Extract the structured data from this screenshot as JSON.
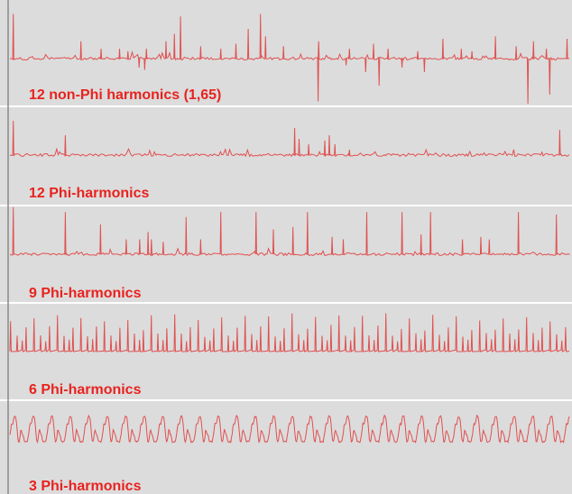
{
  "colors": {
    "background": "#dcdcdc",
    "separator": "#ffffff",
    "left_border": "#8a8a8a",
    "trace": "#e05050",
    "label": "#e8231f"
  },
  "chart_data": [
    {
      "type": "line",
      "series": [
        {
          "name": "12 non-Phi harmonics (1,65)"
        }
      ],
      "spikes_up": [
        [
          0.5,
          0.9
        ],
        [
          12.6,
          0.35
        ],
        [
          16.2,
          0.2
        ],
        [
          19.5,
          0.2
        ],
        [
          21.0,
          0.15
        ],
        [
          24.3,
          0.2
        ],
        [
          27.8,
          0.35
        ],
        [
          29.3,
          0.5
        ],
        [
          30.4,
          0.85
        ],
        [
          34.0,
          0.25
        ],
        [
          37.6,
          0.2
        ],
        [
          40.3,
          0.3
        ],
        [
          42.5,
          0.6
        ],
        [
          44.7,
          0.9
        ],
        [
          45.6,
          0.45
        ],
        [
          48.8,
          0.25
        ],
        [
          55.1,
          0.35
        ],
        [
          60.6,
          0.2
        ],
        [
          64.9,
          0.3
        ],
        [
          67.5,
          0.2
        ],
        [
          72.8,
          0.15
        ],
        [
          77.3,
          0.4
        ],
        [
          80.6,
          0.2
        ],
        [
          82.5,
          0.15
        ],
        [
          86.7,
          0.45
        ],
        [
          90.4,
          0.25
        ],
        [
          93.5,
          0.35
        ],
        [
          95.8,
          0.2
        ],
        [
          99.5,
          0.4
        ]
      ],
      "spikes_down": [
        [
          23.0,
          0.2
        ],
        [
          24.0,
          0.25
        ],
        [
          55.0,
          0.95
        ],
        [
          60.0,
          0.15
        ],
        [
          63.5,
          0.3
        ],
        [
          65.9,
          0.6
        ],
        [
          70.0,
          0.2
        ],
        [
          74.0,
          0.3
        ],
        [
          92.5,
          1.0
        ],
        [
          96.4,
          0.8
        ]
      ]
    },
    {
      "type": "line",
      "series": [
        {
          "name": "12 Phi-harmonics"
        }
      ],
      "spikes_up": [
        [
          0.5,
          0.95
        ],
        [
          9.8,
          0.55
        ],
        [
          50.8,
          0.75
        ],
        [
          51.6,
          0.45
        ],
        [
          53.3,
          0.3
        ],
        [
          56.2,
          0.4
        ],
        [
          57.0,
          0.55
        ],
        [
          58.0,
          0.3
        ],
        [
          60.6,
          0.15
        ],
        [
          98.2,
          0.7
        ]
      ],
      "spikes_down": []
    },
    {
      "type": "line",
      "series": [
        {
          "name": "9 Phi-harmonics"
        }
      ],
      "spikes_up": [
        [
          0.5,
          0.95
        ],
        [
          9.8,
          0.85
        ],
        [
          16.1,
          0.6
        ],
        [
          20.7,
          0.3
        ],
        [
          23.1,
          0.3
        ],
        [
          24.6,
          0.45
        ],
        [
          25.2,
          0.3
        ],
        [
          27.3,
          0.25
        ],
        [
          31.4,
          0.75
        ],
        [
          34.0,
          0.3
        ],
        [
          37.6,
          0.85
        ],
        [
          43.9,
          0.85
        ],
        [
          47.0,
          0.5
        ],
        [
          50.5,
          0.55
        ],
        [
          53.1,
          0.85
        ],
        [
          57.5,
          0.35
        ],
        [
          59.5,
          0.3
        ],
        [
          63.7,
          0.85
        ],
        [
          70.0,
          0.85
        ],
        [
          73.4,
          0.4
        ],
        [
          75.1,
          0.85
        ],
        [
          80.8,
          0.3
        ],
        [
          84.1,
          0.35
        ],
        [
          85.6,
          0.3
        ],
        [
          90.8,
          0.85
        ],
        [
          97.6,
          0.8
        ]
      ],
      "spikes_down": []
    },
    {
      "type": "line",
      "series": [
        {
          "name": "6 Phi-harmonics"
        }
      ],
      "spikes_up": [],
      "spikes_down": []
    },
    {
      "type": "line",
      "series": [
        {
          "name": "3 Phi-harmonics"
        }
      ],
      "spikes_up": [],
      "spikes_down": []
    }
  ]
}
